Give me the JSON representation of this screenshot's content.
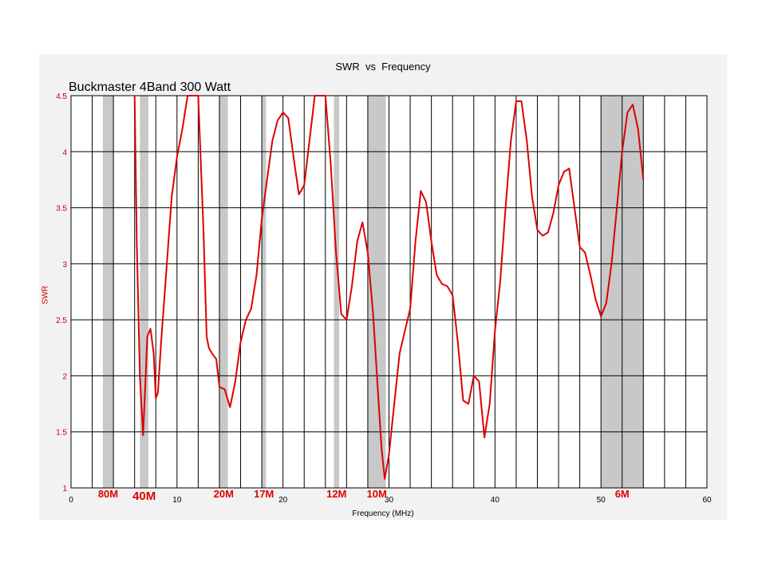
{
  "colors": {
    "curve": "#dd0000",
    "band_shade": "#c8c8c8",
    "grid": "#000000",
    "panel": "#f2f2f2"
  },
  "chart_data": {
    "type": "line",
    "title": "SWR  vs  Frequency",
    "subtitle": "Buckmaster  4Band 300 Watt",
    "xlabel": "Frequency (MHz)",
    "ylabel": "SWR",
    "xlim": [
      0,
      60
    ],
    "ylim": [
      1,
      4.5
    ],
    "xticks": [
      0,
      10,
      20,
      30,
      40,
      50,
      60
    ],
    "yticks": [
      1,
      1.5,
      2,
      2.5,
      3,
      3.5,
      4,
      4.5
    ],
    "ytick_labels": [
      "1",
      "1.5",
      "2",
      "2.5",
      "3",
      "3.5",
      "4",
      "4.5"
    ],
    "grid": true,
    "bands": [
      {
        "label": "80M",
        "start": 3.0,
        "end": 4.0,
        "size": "small"
      },
      {
        "label": "40M",
        "start": 6.5,
        "end": 7.3,
        "size": "large"
      },
      {
        "label": "20M",
        "start": 14.0,
        "end": 14.8,
        "size": "small"
      },
      {
        "label": "17M",
        "start": 18.0,
        "end": 18.4,
        "size": "small"
      },
      {
        "label": "12M",
        "start": 24.8,
        "end": 25.3,
        "size": "small"
      },
      {
        "label": "10M",
        "start": 28.0,
        "end": 29.7,
        "size": "small"
      },
      {
        "label": "6M",
        "start": 50.0,
        "end": 54.0,
        "size": "small"
      }
    ],
    "series": [
      {
        "x": [
          6.0,
          6.2,
          6.5,
          6.8,
          7.0,
          7.2,
          7.5,
          7.8,
          8.0,
          8.2,
          8.5,
          9.0,
          9.5,
          10.0,
          10.5,
          11.0,
          11.5,
          12.0,
          12.5,
          12.8,
          13.0,
          13.3,
          13.7,
          14.0,
          14.5,
          15.0,
          15.5,
          16.0,
          16.5,
          17.0,
          17.5,
          18.0,
          18.5,
          19.0,
          19.5,
          20.0,
          20.5,
          21.0,
          21.5,
          22.0,
          22.5,
          23.0,
          23.5,
          24.0,
          24.5,
          25.0,
          25.5,
          26.0,
          26.5,
          27.0,
          27.5,
          28.0,
          28.5,
          29.0,
          29.3,
          29.6,
          30.0,
          30.5,
          31.0,
          31.5,
          32.0,
          32.5,
          33.0,
          33.5,
          34.0,
          34.5,
          35.0,
          35.5,
          36.0,
          36.5,
          37.0,
          37.5,
          38.0,
          38.5,
          39.0,
          39.5,
          40.0,
          40.5,
          41.0,
          41.5,
          42.0,
          42.5,
          43.0,
          43.5,
          44.0,
          44.5,
          45.0,
          45.5,
          46.0,
          46.5,
          47.0,
          47.5,
          48.0,
          48.5,
          49.0,
          49.5,
          50.0,
          50.5,
          51.0,
          51.5,
          52.0,
          52.5,
          53.0,
          53.5,
          54.0
        ],
        "y": [
          4.5,
          3.2,
          2.0,
          1.47,
          1.9,
          2.35,
          2.42,
          2.2,
          1.8,
          1.85,
          2.3,
          2.95,
          3.6,
          3.95,
          4.2,
          4.5,
          4.5,
          4.5,
          3.3,
          2.35,
          2.25,
          2.2,
          2.15,
          1.9,
          1.88,
          1.72,
          1.95,
          2.3,
          2.5,
          2.6,
          2.9,
          3.4,
          3.75,
          4.1,
          4.28,
          4.35,
          4.3,
          3.95,
          3.62,
          3.7,
          4.1,
          4.5,
          4.5,
          4.5,
          3.9,
          3.1,
          2.55,
          2.5,
          2.8,
          3.2,
          3.37,
          3.1,
          2.55,
          1.8,
          1.35,
          1.08,
          1.3,
          1.75,
          2.2,
          2.4,
          2.6,
          3.2,
          3.65,
          3.55,
          3.2,
          2.9,
          2.82,
          2.8,
          2.72,
          2.3,
          1.78,
          1.75,
          2.0,
          1.95,
          1.45,
          1.75,
          2.4,
          2.85,
          3.5,
          4.1,
          4.45,
          4.45,
          4.1,
          3.6,
          3.3,
          3.25,
          3.28,
          3.45,
          3.7,
          3.82,
          3.85,
          3.5,
          3.15,
          3.1,
          2.9,
          2.68,
          2.53,
          2.65,
          3.0,
          3.5,
          4.0,
          4.35,
          4.42,
          4.2,
          3.75
        ]
      }
    ]
  }
}
